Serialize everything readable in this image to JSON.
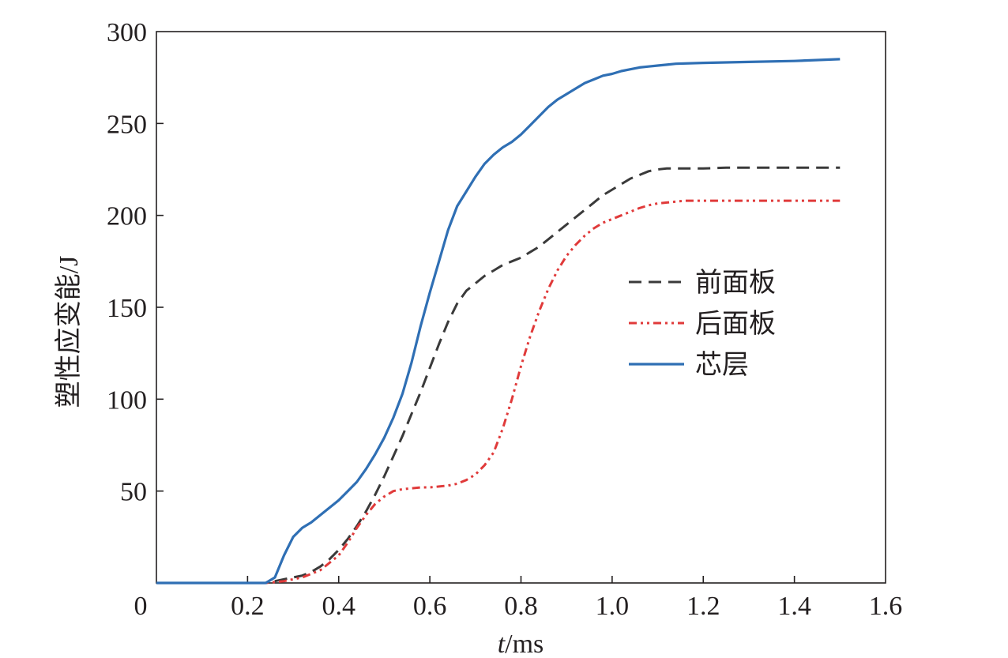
{
  "chart_data": {
    "type": "line",
    "title": "",
    "xlabel_italic": "t",
    "xlabel_rest": "/ms",
    "ylabel": "塑性应变能/J",
    "xlim": [
      0,
      1.6
    ],
    "ylim": [
      0,
      300
    ],
    "x_ticks": [
      "0",
      "0.2",
      "0.4",
      "0.6",
      "0.8",
      "1.0",
      "1.2",
      "1.4",
      "1.6"
    ],
    "x_tick_values": [
      0,
      0.2,
      0.4,
      0.6,
      0.8,
      1.0,
      1.2,
      1.4,
      1.6
    ],
    "y_ticks": [
      "50",
      "100",
      "150",
      "200",
      "250",
      "300"
    ],
    "y_tick_values": [
      50,
      100,
      150,
      200,
      250,
      300
    ],
    "grid": false,
    "legend_position": "center-right",
    "series": [
      {
        "name": "前面板",
        "color": "#3a3a3a",
        "style": "dashed",
        "x": [
          0,
          0.24,
          0.26,
          0.28,
          0.3,
          0.32,
          0.34,
          0.36,
          0.38,
          0.4,
          0.42,
          0.44,
          0.46,
          0.48,
          0.5,
          0.52,
          0.54,
          0.56,
          0.58,
          0.6,
          0.62,
          0.64,
          0.66,
          0.68,
          0.7,
          0.72,
          0.74,
          0.76,
          0.78,
          0.8,
          0.82,
          0.84,
          0.86,
          0.88,
          0.9,
          0.92,
          0.94,
          0.96,
          0.98,
          1.0,
          1.02,
          1.04,
          1.06,
          1.08,
          1.1,
          1.12,
          1.14,
          1.2,
          1.25,
          1.3,
          1.4,
          1.5
        ],
        "y": [
          0,
          0,
          1,
          2,
          3,
          4,
          6,
          9,
          13,
          18,
          24,
          31,
          39,
          48,
          58,
          69,
          80,
          92,
          104,
          117,
          130,
          142,
          152,
          159,
          163,
          167,
          170,
          173,
          175,
          177,
          180,
          183,
          187,
          191,
          195,
          199,
          203,
          207,
          211,
          214,
          217,
          220,
          222,
          224,
          225,
          225.5,
          225.5,
          225.5,
          226,
          226,
          226,
          226
        ]
      },
      {
        "name": "后面板",
        "color": "#e03a3a",
        "style": "dash-dot-dot",
        "x": [
          0,
          0.24,
          0.28,
          0.32,
          0.36,
          0.4,
          0.42,
          0.44,
          0.46,
          0.48,
          0.5,
          0.52,
          0.54,
          0.56,
          0.58,
          0.6,
          0.62,
          0.64,
          0.66,
          0.68,
          0.7,
          0.72,
          0.74,
          0.76,
          0.78,
          0.8,
          0.82,
          0.84,
          0.86,
          0.88,
          0.9,
          0.92,
          0.94,
          0.96,
          0.98,
          1.0,
          1.02,
          1.04,
          1.06,
          1.08,
          1.1,
          1.12,
          1.14,
          1.16,
          1.2,
          1.3,
          1.4,
          1.5
        ],
        "y": [
          0,
          0,
          1,
          3,
          7,
          15,
          22,
          30,
          37,
          43,
          47,
          50,
          51,
          51.5,
          52,
          52,
          52.5,
          53,
          54,
          56,
          59,
          64,
          71,
          84,
          100,
          118,
          134,
          148,
          160,
          170,
          178,
          184,
          189,
          193,
          196,
          198,
          200,
          202,
          204,
          205.5,
          206.5,
          207,
          207.5,
          208,
          208,
          208,
          208,
          208
        ]
      },
      {
        "name": "芯层",
        "color": "#2f6fb4",
        "style": "solid",
        "x": [
          0,
          0.24,
          0.26,
          0.28,
          0.3,
          0.32,
          0.34,
          0.36,
          0.38,
          0.4,
          0.42,
          0.44,
          0.46,
          0.48,
          0.5,
          0.52,
          0.54,
          0.56,
          0.58,
          0.6,
          0.62,
          0.64,
          0.66,
          0.68,
          0.7,
          0.72,
          0.74,
          0.76,
          0.78,
          0.8,
          0.82,
          0.84,
          0.86,
          0.88,
          0.9,
          0.92,
          0.94,
          0.96,
          0.98,
          1.0,
          1.02,
          1.04,
          1.06,
          1.08,
          1.1,
          1.12,
          1.14,
          1.2,
          1.3,
          1.4,
          1.5
        ],
        "y": [
          0,
          0,
          3,
          15,
          25,
          30,
          33,
          37,
          41,
          45,
          50,
          55,
          62,
          70,
          79,
          90,
          103,
          120,
          140,
          158,
          175,
          192,
          205,
          213,
          221,
          228,
          233,
          237,
          240,
          244,
          249,
          254,
          259,
          263,
          266,
          269,
          272,
          274,
          276,
          277,
          278.5,
          279.5,
          280.5,
          281,
          281.5,
          282,
          282.5,
          283,
          283.5,
          284,
          285
        ]
      }
    ]
  }
}
